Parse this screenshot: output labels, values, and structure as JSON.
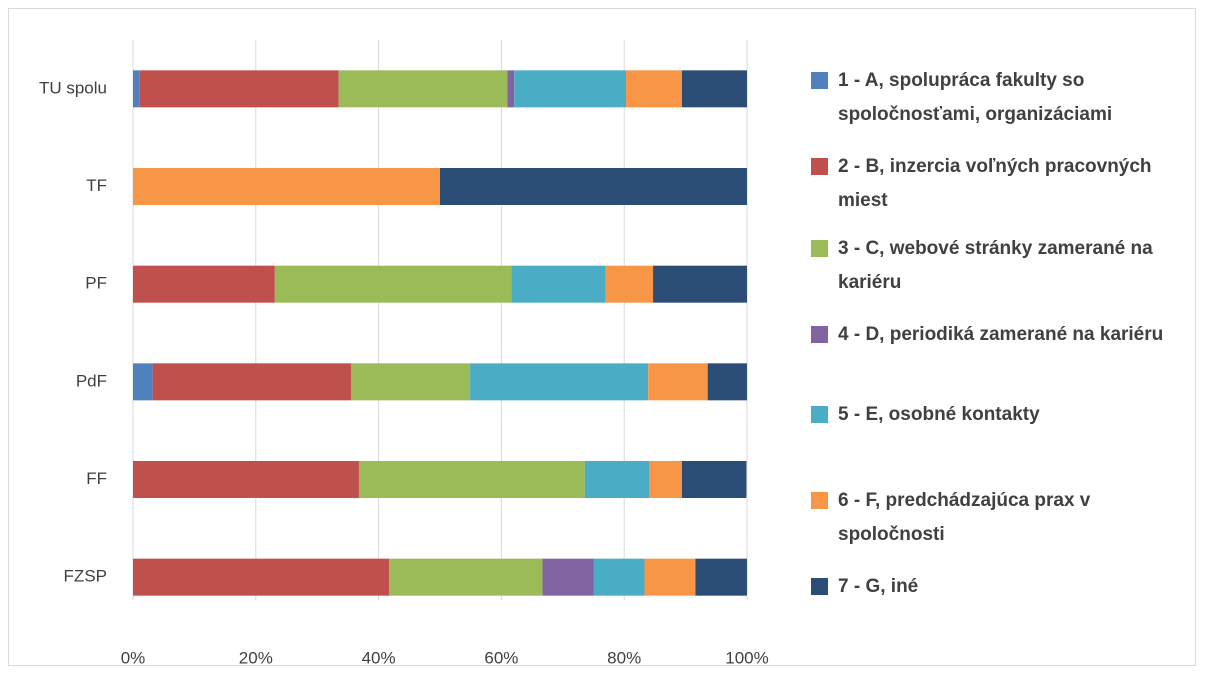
{
  "chart_data": {
    "type": "stacked-bar-horizontal",
    "categories": [
      "TU spolu",
      "TF",
      "PF",
      "PdF",
      "FF",
      "FZSP"
    ],
    "series": [
      {
        "name": "1 - A, spolupráca fakulty so spoločnosťami, organizáciami",
        "color": "#4f81bd",
        "values": [
          1.1,
          0,
          0,
          3.2,
          0,
          0
        ]
      },
      {
        "name": "2 - B, inzercia voľných pracovných miest",
        "color": "#c0504d",
        "values": [
          32.4,
          0,
          23.1,
          32.3,
          36.8,
          41.7
        ]
      },
      {
        "name": "3 - C, webové stránky zamerané na kariéru",
        "color": "#9bbb59",
        "values": [
          27.5,
          0,
          38.5,
          19.4,
          36.8,
          25
        ]
      },
      {
        "name": "4 - D, periodiká zamerané na kariéru",
        "color": "#8064a2",
        "values": [
          1.1,
          0,
          0,
          0,
          0,
          8.3
        ]
      },
      {
        "name": "5 - E, osobné kontakty",
        "color": "#4bacc6",
        "values": [
          18.2,
          0,
          15.4,
          29.0,
          10.5,
          8.3
        ]
      },
      {
        "name": "6 - F, predchádzajúca prax v spoločnosti",
        "color": "#f79646",
        "values": [
          9.1,
          50,
          7.7,
          9.7,
          5.3,
          8.3
        ]
      },
      {
        "name": "7 - G, iné",
        "color": "#2c4d75",
        "values": [
          10.6,
          50,
          15.3,
          6.4,
          10.5,
          8.4
        ]
      }
    ],
    "xlim": [
      0,
      100
    ],
    "xticks": [
      {
        "value": 0,
        "label": "0%"
      },
      {
        "value": 20,
        "label": "20%"
      },
      {
        "value": 40,
        "label": "40%"
      },
      {
        "value": 60,
        "label": "60%"
      },
      {
        "value": 80,
        "label": "80%"
      },
      {
        "value": 100,
        "label": "100%"
      }
    ],
    "grid": true,
    "legend": "right"
  }
}
